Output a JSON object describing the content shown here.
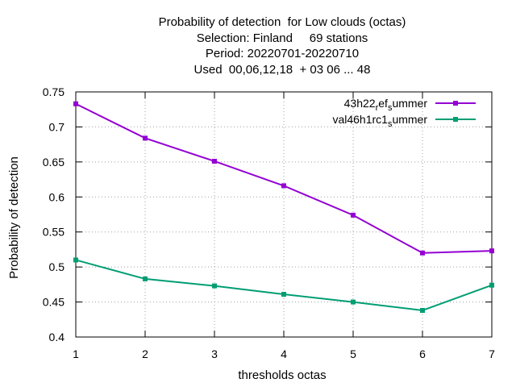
{
  "chart_data": {
    "type": "line",
    "title_lines": [
      "Probability of detection  for Low clouds (octas)",
      "Selection: Finland     69 stations",
      "Period: 20220701-20220710",
      "Used  00,06,12,18  + 03 06 ... 48"
    ],
    "xlabel": "thresholds octas",
    "ylabel": "Probability of detection",
    "x": [
      1,
      2,
      3,
      4,
      5,
      6,
      7
    ],
    "xlim": [
      1,
      7
    ],
    "ylim": [
      0.4,
      0.75
    ],
    "yticks": [
      "0.4",
      "0.45",
      "0.5",
      "0.55",
      "0.6",
      "0.65",
      "0.7",
      "0.75"
    ],
    "xticks": [
      "1",
      "2",
      "3",
      "4",
      "5",
      "6",
      "7"
    ],
    "grid": true,
    "legend_position": "top-right",
    "series": [
      {
        "name_parts": [
          "43h22",
          "r",
          "ef",
          "s",
          "ummer"
        ],
        "color": "#9400d3",
        "values": [
          0.733,
          0.684,
          0.651,
          0.616,
          0.574,
          0.52,
          0.523
        ]
      },
      {
        "name_parts": [
          "val46h1rc1",
          "s",
          "ummer"
        ],
        "color": "#009e73",
        "values": [
          0.51,
          0.483,
          0.473,
          0.461,
          0.45,
          0.438,
          0.474
        ]
      }
    ]
  }
}
